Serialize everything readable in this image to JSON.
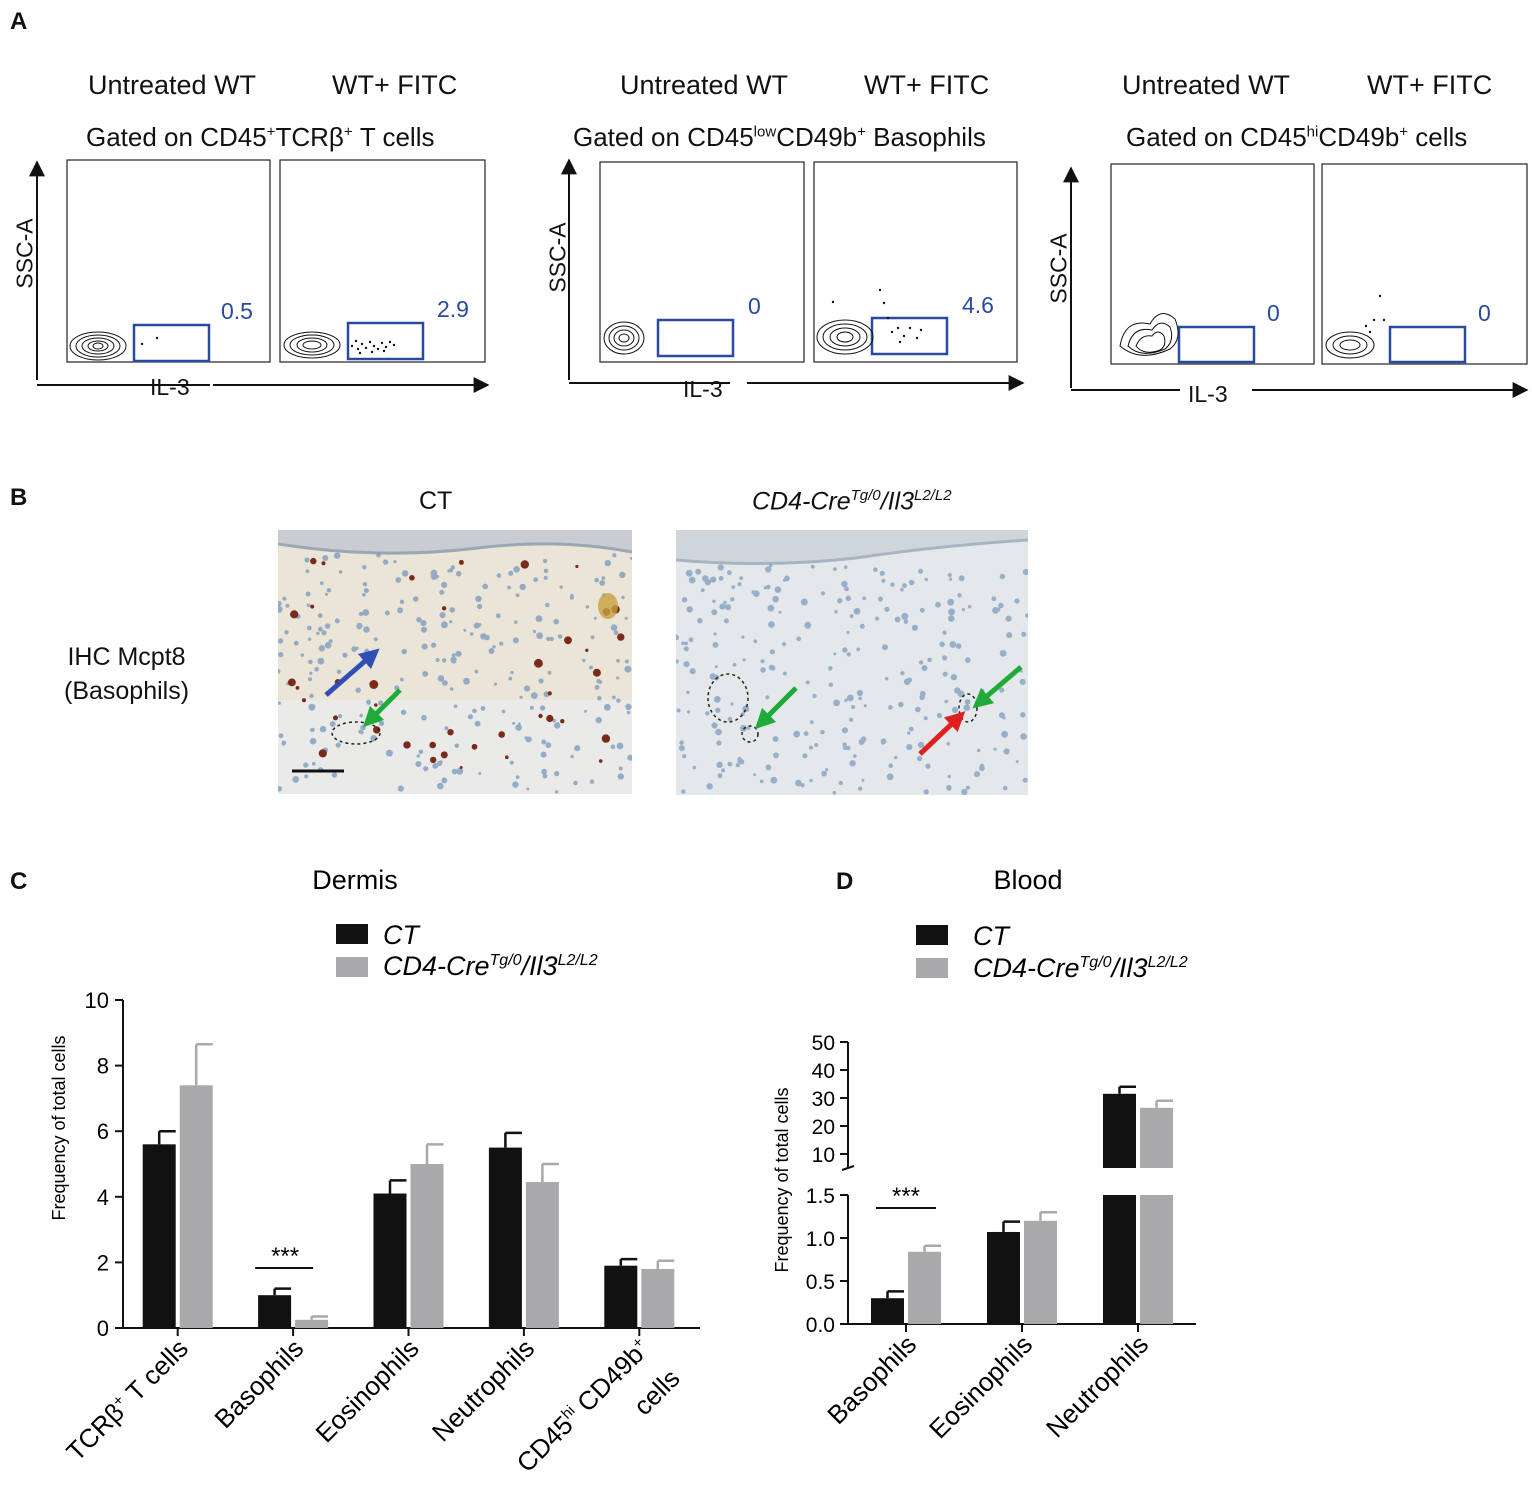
{
  "panel_labels": {
    "a": "A",
    "b": "B",
    "c": "C",
    "d": "D"
  },
  "flow": {
    "groups": [
      {
        "col1": "Untreated WT",
        "col2": "WT+ FITC",
        "gate_pre": "Gated on CD45",
        "gate_sup": "+",
        "gate_mid": "TCRβ",
        "gate_sup2": "+",
        "gate_post": " T cells",
        "y_axis": "SSC-A",
        "x_axis": "IL-3",
        "values": [
          "0.5",
          "2.9"
        ]
      },
      {
        "col1": "Untreated WT",
        "col2": "WT+ FITC",
        "gate_pre": "Gated on CD45",
        "gate_sup": "low",
        "gate_mid": "CD49b",
        "gate_sup2": "+",
        "gate_post": " Basophils",
        "y_axis": "SSC-A",
        "x_axis": "IL-3",
        "values": [
          "0",
          "4.6"
        ]
      },
      {
        "col1": "Untreated WT",
        "col2": "WT+ FITC",
        "gate_pre": "Gated on CD45",
        "gate_sup": "hi",
        "gate_mid": "CD49b",
        "gate_sup2": "+",
        "gate_post": " cells",
        "y_axis": "SSC-A",
        "x_axis": "IL-3",
        "values": [
          "0",
          "0"
        ]
      }
    ]
  },
  "histology": {
    "col_ct": "CT",
    "col_ko_main": "CD4-Cre",
    "col_ko_sup1": "Tg/0",
    "col_ko_mid": "/Il3",
    "col_ko_sup2": "L2/L2",
    "row_label_1": "IHC Mcpt8",
    "row_label_2": "(Basophils)",
    "colors": {
      "tissue_bg": "#e6e0d2",
      "nuclei": "#6d8fb3",
      "stain": "#7a2a1a",
      "arrow_blue": "#2f4fb5",
      "arrow_green": "#1faa3a",
      "arrow_red": "#e02020"
    }
  },
  "chart_data": [
    {
      "type": "bar",
      "title": "Dermis",
      "ylabel": "Frequency of total cells",
      "ylim": [
        0,
        10
      ],
      "yticks": [
        0,
        2,
        4,
        6,
        8,
        10
      ],
      "categories": [
        "TCRβ+ T cells",
        "Basophils",
        "Eosinophils",
        "Neutrophils",
        "CD45hi CD49b+ cells"
      ],
      "category_parts": [
        [
          "TCRβ",
          "+",
          " T cells"
        ],
        [
          "Basophils"
        ],
        [
          "Eosinophils"
        ],
        [
          "Neutrophils"
        ],
        [
          "CD45",
          "hi",
          " CD49b",
          "+",
          " cells"
        ]
      ],
      "series": [
        {
          "name": "CT",
          "color": "#111111",
          "values": [
            5.6,
            1.0,
            4.1,
            5.5,
            1.9
          ],
          "errors": [
            0.4,
            0.2,
            0.4,
            0.45,
            0.2
          ]
        },
        {
          "name": "CD4-CreTg/0/Il3L2/L2",
          "color": "#a9a9ab",
          "values": [
            7.4,
            0.25,
            5.0,
            4.45,
            1.8
          ],
          "errors": [
            1.25,
            0.1,
            0.6,
            0.55,
            0.25
          ]
        }
      ],
      "legend": {
        "name1": "CT",
        "name2_main": "CD4-Cre",
        "name2_sup1": "Tg/0",
        "name2_mid": "/Il3",
        "name2_sup2": "L2/L2",
        "placement": "top"
      },
      "significance": {
        "category_index": 1,
        "text": "***"
      }
    },
    {
      "type": "bar",
      "title": "Blood",
      "ylabel": "Frequency of total cells",
      "axis_break": true,
      "ylim_lower": [
        0,
        1.5
      ],
      "yticks_lower": [
        "0.0",
        "0.5",
        "1.0",
        "1.5"
      ],
      "ylim_upper": [
        0,
        50
      ],
      "yticks_upper": [
        10,
        20,
        30,
        40,
        50
      ],
      "categories": [
        "Basophils",
        "Eosinophils",
        "Neutrophils"
      ],
      "series": [
        {
          "name": "CT",
          "color": "#111111",
          "values": [
            0.3,
            1.07,
            31.5
          ],
          "errors": [
            0.08,
            0.12,
            2.5
          ]
        },
        {
          "name": "CD4-CreTg/0/Il3L2/L2",
          "color": "#a9a9ab",
          "values": [
            0.84,
            1.2,
            26.5
          ],
          "errors": [
            0.07,
            0.1,
            2.5
          ]
        }
      ],
      "legend": {
        "name1": "CT",
        "name2_main": "CD4-Cre",
        "name2_sup1": "Tg/0",
        "name2_mid": "/Il3",
        "name2_sup2": "L2/L2",
        "placement": "top"
      },
      "significance": {
        "category_index": 0,
        "text": "***"
      }
    }
  ]
}
